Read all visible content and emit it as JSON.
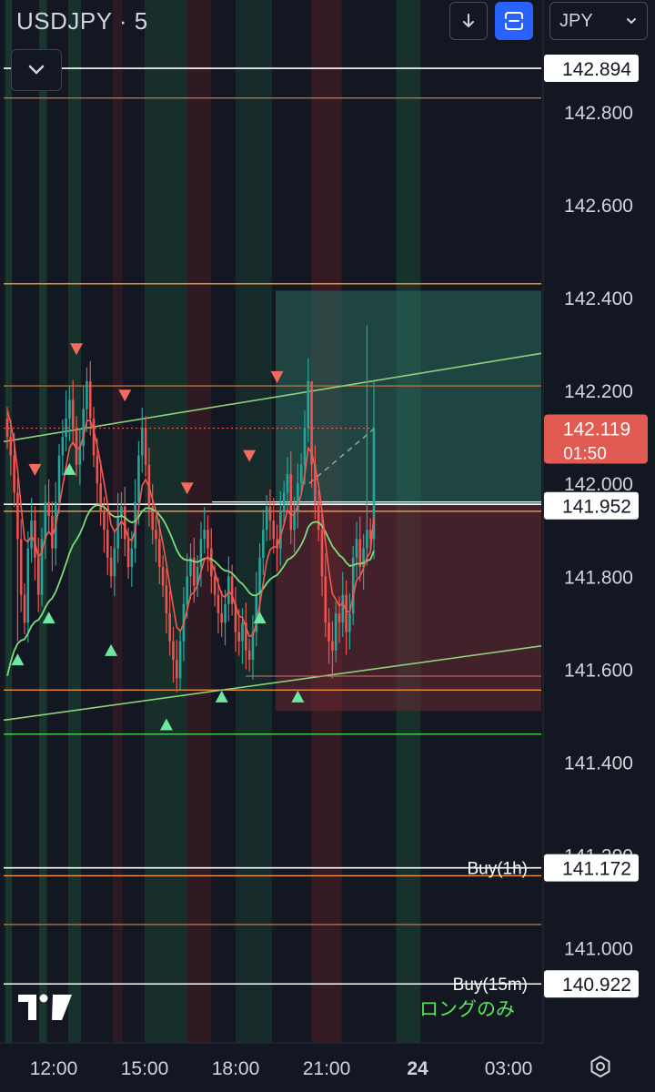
{
  "header": {
    "symbol": "USDJPY · 5",
    "currency": "JPY",
    "download_icon": "arrow-down-icon",
    "fullscreen_icon": "fullscreen-icon",
    "collapse_icon": "chevron-down-icon",
    "settings_icon": "settings-icon"
  },
  "chart_data": {
    "type": "candlestick",
    "instrument": "USDJPY",
    "timeframe": "5",
    "currency": "JPY",
    "ylim": [
      140.78,
      142.94
    ],
    "y_ticks": [
      "142.800",
      "142.600",
      "142.400",
      "142.200",
      "142.000",
      "141.800",
      "141.600",
      "141.400",
      "141.200",
      "141.000"
    ],
    "x_ticks": [
      "12:00",
      "15:00",
      "18:00",
      "21:00",
      "24",
      "03:00"
    ],
    "current_price": {
      "label": "142.119",
      "countdown": "01:50",
      "value": 142.119
    },
    "price_tags": [
      {
        "label": "142.894",
        "value": 142.894
      },
      {
        "label": "141.952",
        "value": 141.952
      },
      {
        "label": "141.172",
        "value": 141.172,
        "caption": "Buy(1h)"
      },
      {
        "label": "140.922",
        "value": 140.922,
        "caption": "Buy(15m)"
      }
    ],
    "horizontal_levels": [
      {
        "value": 142.894,
        "color": "#ffffff"
      },
      {
        "value": 142.83,
        "color": "#b8723a"
      },
      {
        "value": 142.43,
        "color": "#ff9a3c"
      },
      {
        "value": 142.21,
        "color": "#b8723a"
      },
      {
        "value": 141.955,
        "color": "#ffffff"
      },
      {
        "value": 141.94,
        "color": "#ff9a3c"
      },
      {
        "value": 141.555,
        "color": "#ff9a3c"
      },
      {
        "value": 141.46,
        "color": "#57e35c"
      },
      {
        "value": 141.172,
        "color": "#ffffff"
      },
      {
        "value": 141.155,
        "color": "#ff9a3c"
      },
      {
        "value": 141.05,
        "color": "#b8723a"
      },
      {
        "value": 140.922,
        "color": "#ffffff"
      }
    ],
    "annotation": "ロングのみ",
    "colors": {
      "up": "#26a69a",
      "down": "#ef5350",
      "fast_ma": "#f15b52",
      "slow_ma": "#7ddc7d",
      "channel": "#8fd17a"
    }
  }
}
